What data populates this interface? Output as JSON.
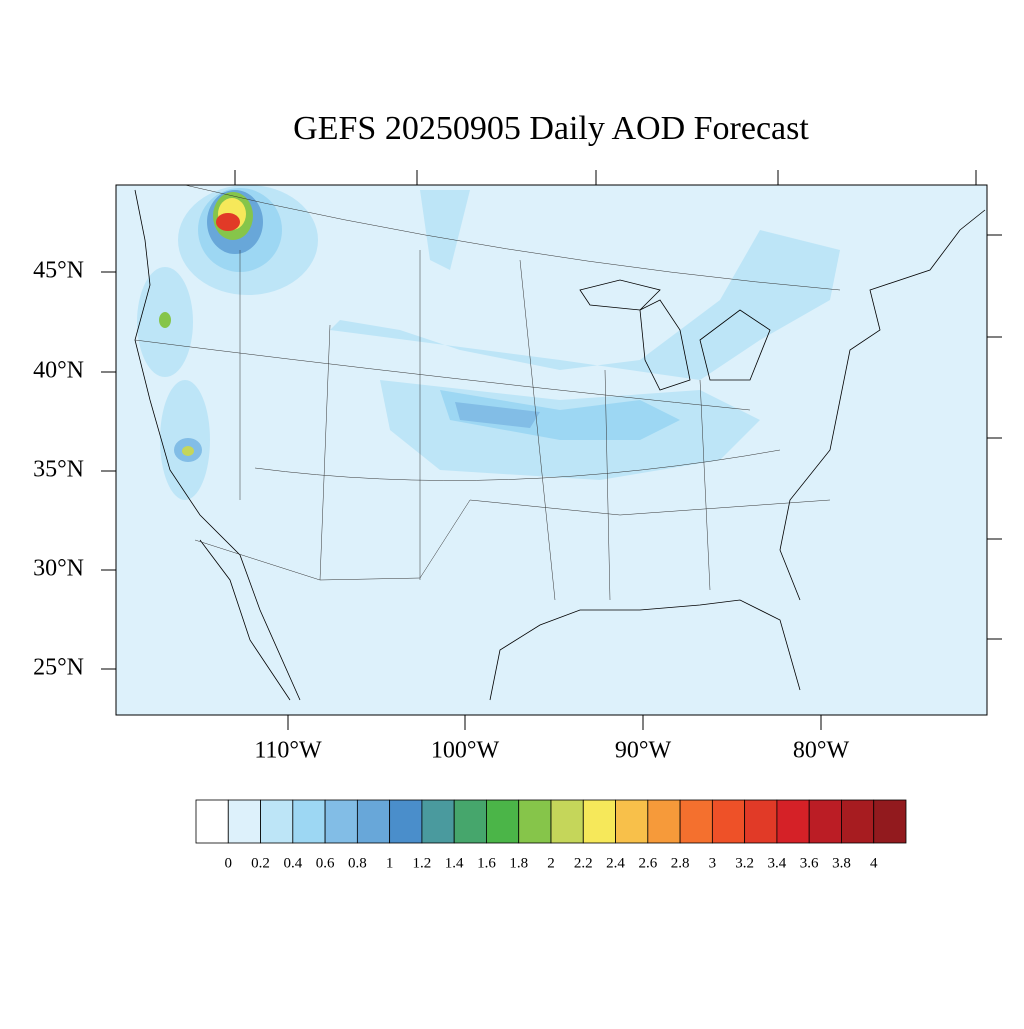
{
  "title": "GEFS 20250905 Daily AOD Forecast",
  "map": {
    "lat_labels": [
      "45°N",
      "40°N",
      "35°N",
      "30°N",
      "25°N"
    ],
    "lon_labels": [
      "110°W",
      "100°W",
      "90°W",
      "80°W"
    ]
  },
  "colorbar": {
    "levels": [
      0,
      0.2,
      0.4,
      0.6,
      0.8,
      1,
      1.2,
      1.4,
      1.6,
      1.8,
      2,
      2.2,
      2.4,
      2.6,
      2.8,
      3,
      3.2,
      3.4,
      3.6,
      3.8,
      4
    ],
    "colors": [
      "#ffffff",
      "#ddf1fb",
      "#bde5f7",
      "#9dd7f3",
      "#82bde6",
      "#68a7d9",
      "#4a8ecb",
      "#4a9a9e",
      "#46a66c",
      "#4bb548",
      "#86c54a",
      "#c5d65a",
      "#f6e85a",
      "#f8c04a",
      "#f69a3a",
      "#f4702e",
      "#ee5128",
      "#e13a27",
      "#d52127",
      "#bb1d25",
      "#a71c20",
      "#921a1e"
    ]
  }
}
